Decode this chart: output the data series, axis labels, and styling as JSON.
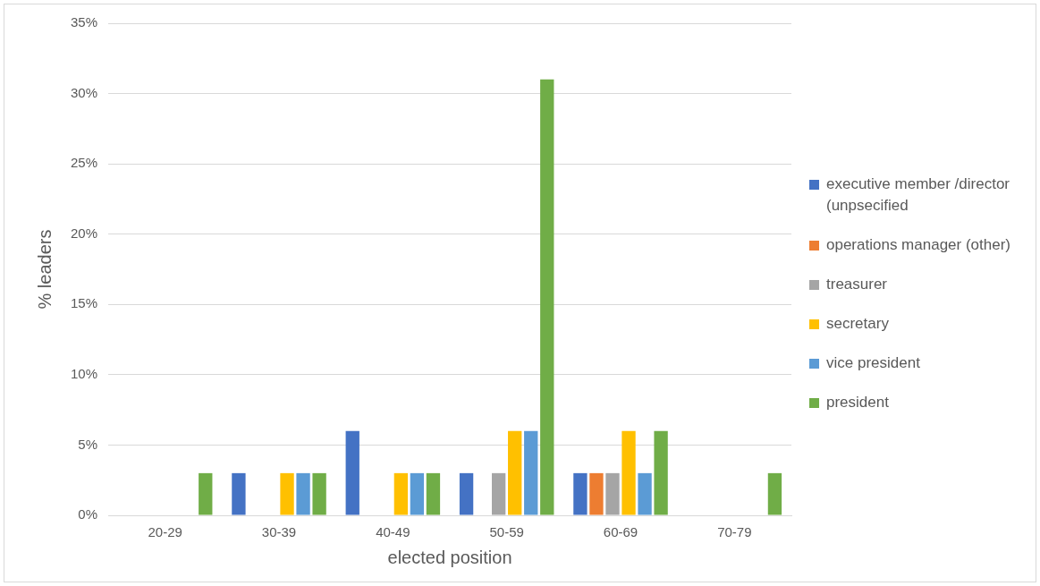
{
  "chart_data": {
    "type": "bar",
    "xlabel": "elected position",
    "ylabel": "% leaders",
    "categories": [
      "20-29",
      "30-39",
      "40-49",
      "50-59",
      "60-69",
      "70-79"
    ],
    "series": [
      {
        "name": "executive member /director (unpsecified",
        "color": "#4472c4",
        "values": [
          0,
          3,
          6,
          3,
          3,
          0
        ]
      },
      {
        "name": "operations manager (other)",
        "color": "#ed7d31",
        "values": [
          0,
          0,
          0,
          0,
          3,
          0
        ]
      },
      {
        "name": "treasurer",
        "color": "#a5a5a5",
        "values": [
          0,
          0,
          0,
          3,
          3,
          0
        ]
      },
      {
        "name": "secretary",
        "color": "#ffc000",
        "values": [
          0,
          3,
          3,
          6,
          6,
          0
        ]
      },
      {
        "name": "vice president",
        "color": "#5b9bd5",
        "values": [
          0,
          3,
          3,
          6,
          3,
          0
        ]
      },
      {
        "name": "president",
        "color": "#70ad47",
        "values": [
          3,
          3,
          3,
          31,
          6,
          3
        ]
      }
    ],
    "ylim": [
      0,
      35
    ],
    "yticks": [
      {
        "value": 0,
        "label": "0%"
      },
      {
        "value": 5,
        "label": "5%"
      },
      {
        "value": 10,
        "label": "10%"
      },
      {
        "value": 15,
        "label": "15%"
      },
      {
        "value": 20,
        "label": "20%"
      },
      {
        "value": 25,
        "label": "25%"
      },
      {
        "value": 30,
        "label": "30%"
      },
      {
        "value": 35,
        "label": "35%"
      }
    ],
    "grid": "y",
    "legend": "right"
  }
}
